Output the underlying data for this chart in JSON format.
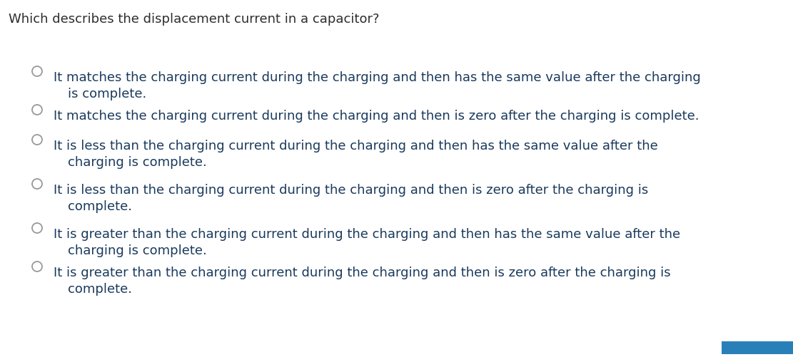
{
  "background_color": "#ffffff",
  "title": "Which describes the displacement current in a capacitor?",
  "title_color": "#2d2d2d",
  "title_fontsize": 13.0,
  "text_color": "#1a3a5c",
  "option_fontsize": 13.0,
  "options": [
    {
      "line1": "It matches the charging current during the charging and then has the same value after the charging",
      "line2": "is complete."
    },
    {
      "line1": "It matches the charging current during the charging and then is zero after the charging is complete.",
      "line2": null
    },
    {
      "line1": "It is less than the charging current during the charging and then has the same value after the",
      "line2": "charging is complete."
    },
    {
      "line1": "It is less than the charging current during the charging and then is zero after the charging is",
      "line2": "complete."
    },
    {
      "line1": "It is greater than the charging current during the charging and then has the same value after the",
      "line2": "charging is complete."
    },
    {
      "line1": "It is greater than the charging current during the charging and then is zero after the charging is",
      "line2": "complete."
    }
  ],
  "circle_color": "#999999",
  "circle_linewidth": 1.3,
  "nav_bar_color": "#1a5276",
  "nav_bar_color2": "#2980b9"
}
